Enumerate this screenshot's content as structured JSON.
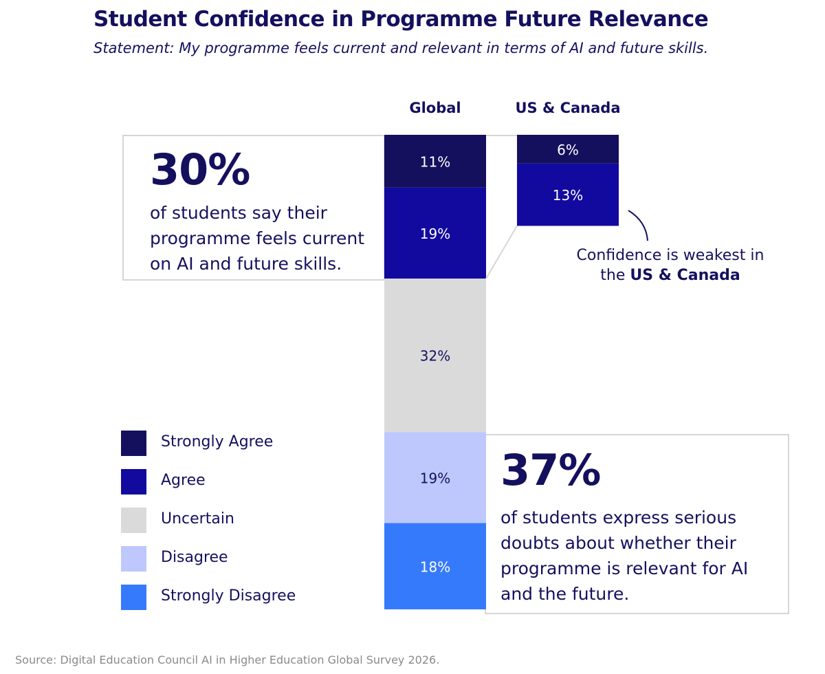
{
  "header": {
    "title": "Student Confidence in Programme Future Relevance",
    "subtitle": "Statement: My programme feels current and relevant in terms of AI and future skills."
  },
  "chart_data": {
    "type": "bar",
    "stacked": true,
    "orientation": "vertical",
    "categories": [
      "Global",
      "US & Canada"
    ],
    "series": [
      {
        "name": "Strongly Agree",
        "color": "#14105e",
        "values": [
          11,
          6
        ]
      },
      {
        "name": "Agree",
        "color": "#120a9e",
        "values": [
          19,
          13
        ]
      },
      {
        "name": "Uncertain",
        "color": "#dadada",
        "values": [
          32,
          null
        ]
      },
      {
        "name": "Disagree",
        "color": "#bec8fd",
        "values": [
          19,
          null
        ]
      },
      {
        "name": "Strongly Disagree",
        "color": "#367afc",
        "values": [
          18,
          null
        ]
      }
    ],
    "value_suffix": "%",
    "legend_position": "bottom-left"
  },
  "highlights": {
    "agree": {
      "value": "30%",
      "lines": [
        "of students say their",
        "programme feels current",
        "on AI and future skills."
      ]
    },
    "doubt": {
      "value": "37%",
      "lines": [
        "of students express serious",
        "doubts about whether their",
        "programme is relevant for AI",
        "and the future."
      ]
    }
  },
  "callout": {
    "line1": "Confidence is weakest in",
    "prefix": "the ",
    "emphasis": "US & Canada"
  },
  "source": "Source: Digital Education Council AI in Higher Education Global Survey 2026."
}
